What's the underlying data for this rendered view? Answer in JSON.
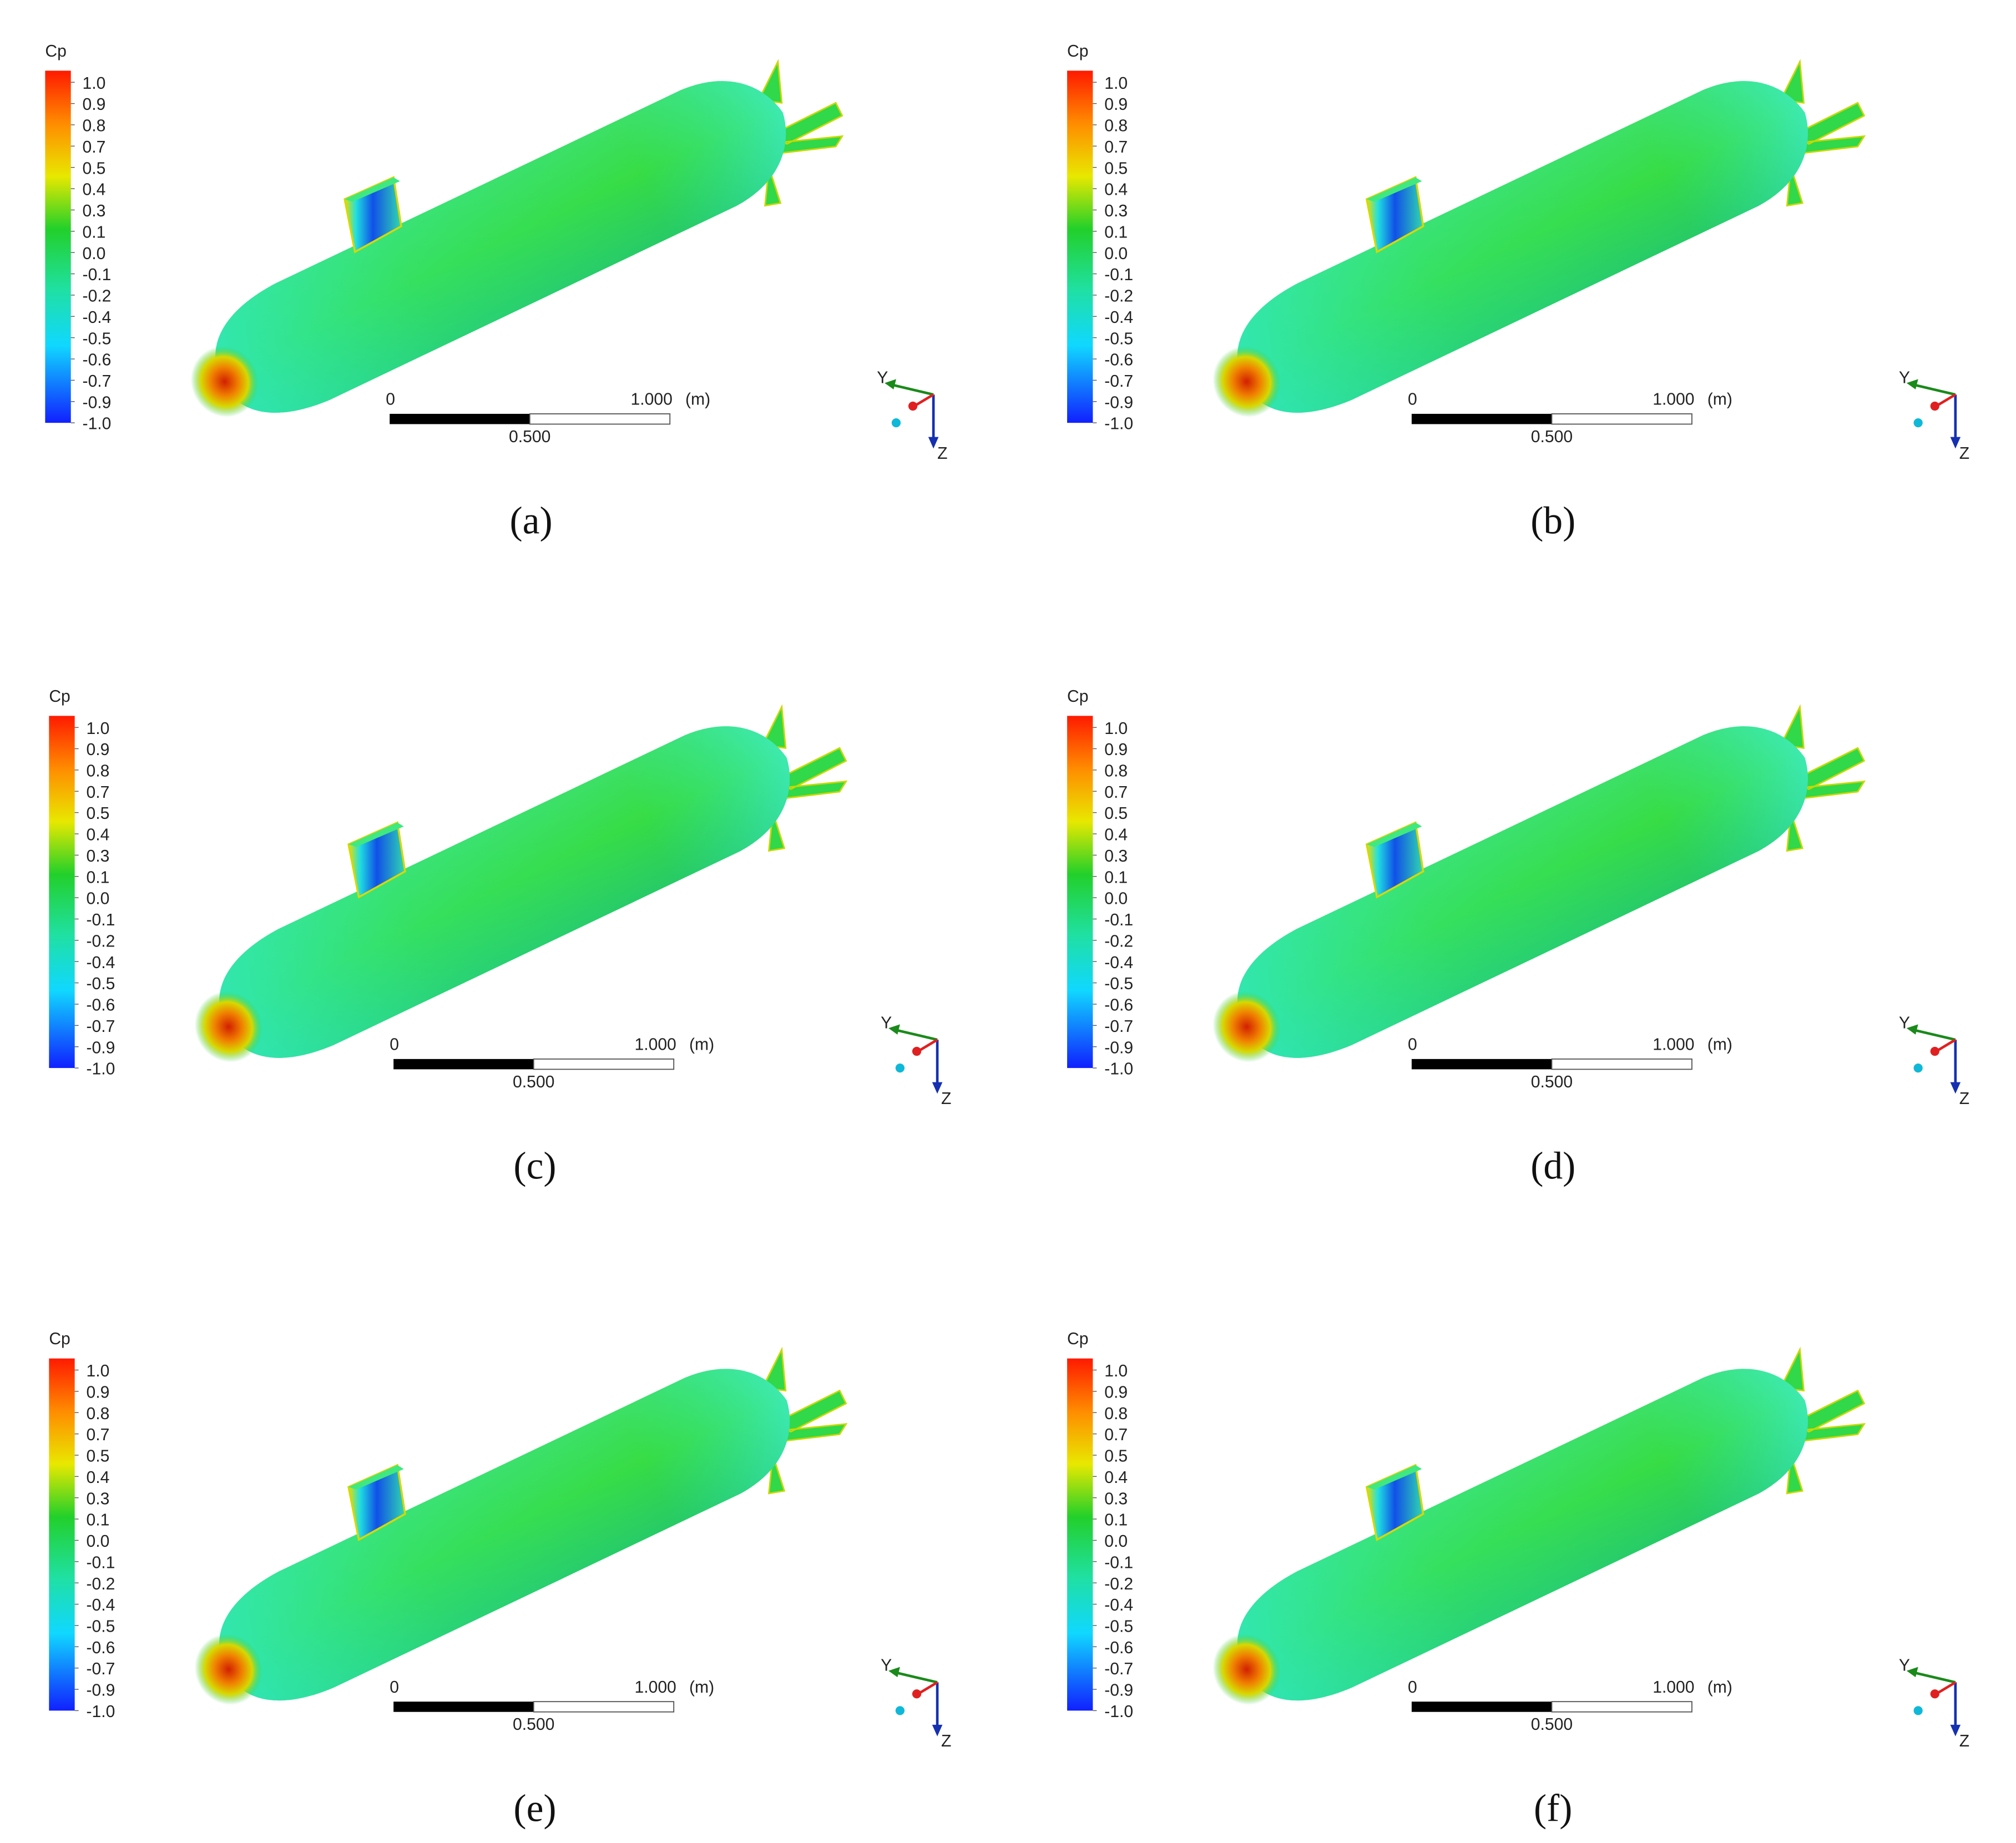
{
  "panels": [
    {
      "caption": "(a)"
    },
    {
      "caption": "(b)"
    },
    {
      "caption": "(c)"
    },
    {
      "caption": "(d)"
    },
    {
      "caption": "(e)"
    },
    {
      "caption": "(f)"
    }
  ],
  "colorbar": {
    "title": "Cp",
    "labels": [
      "1.0",
      "0.9",
      "0.8",
      "0.7",
      "0.5",
      "0.4",
      "0.3",
      "0.1",
      "0.0",
      "-0.1",
      "-0.2",
      "-0.4",
      "-0.5",
      "-0.6",
      "-0.7",
      "-0.9",
      "-1.0"
    ]
  },
  "scale_bar": {
    "start": "0",
    "end": "1.000",
    "unit": "(m)",
    "middle": "0.500"
  },
  "axes": {
    "y": "Y",
    "z": "Z"
  }
}
